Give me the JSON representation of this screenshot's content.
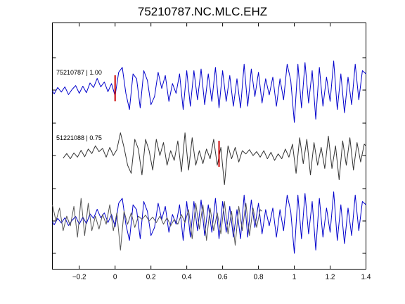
{
  "chart_data": {
    "type": "line",
    "title": "75210787.NC.MLC.EHZ",
    "xlabel": "",
    "ylabel": "",
    "xlim": [
      -0.35,
      1.4
    ],
    "x_ticks": [
      -0.2,
      0,
      0.2,
      0.4,
      0.6,
      0.8,
      1,
      1.2,
      1.4
    ],
    "x_tick_labels": [
      "−0.2",
      "0",
      "0.2",
      "0.4",
      "0.6",
      "0.8",
      "1",
      "1.2",
      "1.4"
    ],
    "grid": false,
    "panels": [
      {
        "label": "75210787 | 1.00",
        "pick_time": 0.0,
        "series": [
          {
            "color": "#0000cc",
            "trace": "blue"
          }
        ]
      },
      {
        "label": "51221088 | 0.75",
        "pick_time": 0.58,
        "series": [
          {
            "color": "#333333",
            "trace": "gray"
          }
        ]
      },
      {
        "label": "",
        "series": [
          {
            "color": "#0000cc",
            "trace": "blue"
          },
          {
            "color": "#555555",
            "trace": "gray",
            "time_shift": -0.58
          }
        ]
      }
    ],
    "traces": {
      "blue": [
        [
          -0.35,
          -0.02
        ],
        [
          -0.34,
          -0.12
        ],
        [
          -0.32,
          0.08
        ],
        [
          -0.3,
          -0.06
        ],
        [
          -0.28,
          0.1
        ],
        [
          -0.26,
          -0.14
        ],
        [
          -0.24,
          0.02
        ],
        [
          -0.22,
          0.14
        ],
        [
          -0.2,
          -0.1
        ],
        [
          -0.18,
          0.12
        ],
        [
          -0.16,
          -0.08
        ],
        [
          -0.14,
          0.22
        ],
        [
          -0.12,
          0.08
        ],
        [
          -0.1,
          0.36
        ],
        [
          -0.08,
          0.1
        ],
        [
          -0.06,
          0.25
        ],
        [
          -0.04,
          -0.05
        ],
        [
          -0.02,
          0.2
        ],
        [
          0.0,
          -0.18
        ],
        [
          0.02,
          0.55
        ],
        [
          0.04,
          0.7
        ],
        [
          0.06,
          -0.1
        ],
        [
          0.08,
          -0.6
        ],
        [
          0.1,
          0.5
        ],
        [
          0.12,
          0.35
        ],
        [
          0.14,
          -0.55
        ],
        [
          0.16,
          0.6
        ],
        [
          0.18,
          0.3
        ],
        [
          0.2,
          -0.45
        ],
        [
          0.22,
          -0.2
        ],
        [
          0.24,
          0.55
        ],
        [
          0.26,
          0.05
        ],
        [
          0.28,
          0.45
        ],
        [
          0.3,
          -0.35
        ],
        [
          0.32,
          0.2
        ],
        [
          0.34,
          -0.1
        ],
        [
          0.36,
          0.5
        ],
        [
          0.38,
          -0.6
        ],
        [
          0.4,
          0.6
        ],
        [
          0.42,
          -0.5
        ],
        [
          0.44,
          0.6
        ],
        [
          0.46,
          -0.3
        ],
        [
          0.48,
          0.65
        ],
        [
          0.5,
          -0.45
        ],
        [
          0.52,
          0.5
        ],
        [
          0.54,
          -0.35
        ],
        [
          0.56,
          0.7
        ],
        [
          0.58,
          -0.55
        ],
        [
          0.6,
          0.6
        ],
        [
          0.62,
          -0.35
        ],
        [
          0.64,
          0.45
        ],
        [
          0.66,
          -0.5
        ],
        [
          0.68,
          0.35
        ],
        [
          0.7,
          -0.55
        ],
        [
          0.72,
          0.8
        ],
        [
          0.74,
          -0.5
        ],
        [
          0.76,
          0.65
        ],
        [
          0.78,
          -0.2
        ],
        [
          0.8,
          0.55
        ],
        [
          0.82,
          -0.4
        ],
        [
          0.84,
          0.35
        ],
        [
          0.86,
          -0.15
        ],
        [
          0.88,
          0.4
        ],
        [
          0.9,
          -0.5
        ],
        [
          0.92,
          0.35
        ],
        [
          0.94,
          -0.3
        ],
        [
          0.96,
          0.8
        ],
        [
          0.98,
          0.3
        ],
        [
          1.0,
          -1.0
        ],
        [
          1.02,
          0.8
        ],
        [
          1.04,
          -0.55
        ],
        [
          1.06,
          0.85
        ],
        [
          1.08,
          -0.4
        ],
        [
          1.1,
          0.6
        ],
        [
          1.12,
          -0.9
        ],
        [
          1.14,
          0.7
        ],
        [
          1.16,
          -0.5
        ],
        [
          1.18,
          0.4
        ],
        [
          1.2,
          -0.35
        ],
        [
          1.22,
          0.9
        ],
        [
          1.24,
          -0.6
        ],
        [
          1.26,
          0.5
        ],
        [
          1.28,
          -0.7
        ],
        [
          1.3,
          0.4
        ],
        [
          1.32,
          -0.45
        ],
        [
          1.34,
          0.8
        ],
        [
          1.36,
          -0.3
        ],
        [
          1.38,
          0.6
        ],
        [
          1.4,
          0.5
        ]
      ],
      "gray": [
        [
          -0.29,
          -0.08
        ],
        [
          -0.27,
          0.06
        ],
        [
          -0.25,
          -0.1
        ],
        [
          -0.23,
          0.08
        ],
        [
          -0.21,
          -0.05
        ],
        [
          -0.19,
          0.16
        ],
        [
          -0.17,
          -0.04
        ],
        [
          -0.15,
          0.2
        ],
        [
          -0.13,
          0.06
        ],
        [
          -0.11,
          0.3
        ],
        [
          -0.09,
          0.12
        ],
        [
          -0.07,
          0.22
        ],
        [
          -0.05,
          -0.05
        ],
        [
          -0.03,
          0.25
        ],
        [
          -0.01,
          0.0
        ],
        [
          0.01,
          0.18
        ],
        [
          0.03,
          0.7
        ],
        [
          0.05,
          0.25
        ],
        [
          0.07,
          -0.3
        ],
        [
          0.09,
          -0.55
        ],
        [
          0.11,
          0.5
        ],
        [
          0.13,
          0.2
        ],
        [
          0.15,
          -0.6
        ],
        [
          0.17,
          0.5
        ],
        [
          0.19,
          0.15
        ],
        [
          0.21,
          -0.45
        ],
        [
          0.23,
          0.5
        ],
        [
          0.25,
          0.0
        ],
        [
          0.27,
          0.4
        ],
        [
          0.29,
          -0.3
        ],
        [
          0.31,
          0.15
        ],
        [
          0.33,
          -0.15
        ],
        [
          0.35,
          0.45
        ],
        [
          0.37,
          -0.5
        ],
        [
          0.39,
          0.7
        ],
        [
          0.41,
          -0.45
        ],
        [
          0.43,
          0.55
        ],
        [
          0.45,
          -0.3
        ],
        [
          0.47,
          0.15
        ],
        [
          0.49,
          -0.25
        ],
        [
          0.51,
          0.2
        ],
        [
          0.53,
          -0.1
        ],
        [
          0.55,
          0.5
        ],
        [
          0.57,
          -0.3
        ],
        [
          0.59,
          0.25
        ],
        [
          0.61,
          -0.9
        ],
        [
          0.63,
          0.3
        ],
        [
          0.65,
          -0.1
        ],
        [
          0.67,
          0.25
        ],
        [
          0.69,
          -0.2
        ],
        [
          0.71,
          0.15
        ],
        [
          0.73,
          0.05
        ],
        [
          0.75,
          0.18
        ],
        [
          0.77,
          0.0
        ],
        [
          0.79,
          0.12
        ],
        [
          0.81,
          -0.05
        ],
        [
          0.83,
          0.15
        ],
        [
          0.85,
          -0.1
        ],
        [
          0.87,
          0.1
        ],
        [
          0.89,
          -0.15
        ],
        [
          0.91,
          0.05
        ],
        [
          0.93,
          -0.1
        ],
        [
          0.95,
          0.2
        ],
        [
          0.97,
          -0.05
        ],
        [
          0.99,
          0.35
        ],
        [
          1.01,
          -0.55
        ],
        [
          1.03,
          0.55
        ],
        [
          1.05,
          -0.25
        ],
        [
          1.07,
          0.5
        ],
        [
          1.09,
          -0.6
        ],
        [
          1.11,
          0.4
        ],
        [
          1.13,
          -0.3
        ],
        [
          1.15,
          0.25
        ],
        [
          1.17,
          -0.4
        ],
        [
          1.19,
          0.6
        ],
        [
          1.21,
          -0.4
        ],
        [
          1.23,
          0.3
        ],
        [
          1.25,
          -0.75
        ],
        [
          1.27,
          0.45
        ],
        [
          1.29,
          -0.3
        ],
        [
          1.31,
          0.55
        ],
        [
          1.33,
          -0.45
        ],
        [
          1.35,
          0.4
        ],
        [
          1.37,
          -0.2
        ],
        [
          1.39,
          0.35
        ],
        [
          1.4,
          0.3
        ]
      ]
    }
  }
}
